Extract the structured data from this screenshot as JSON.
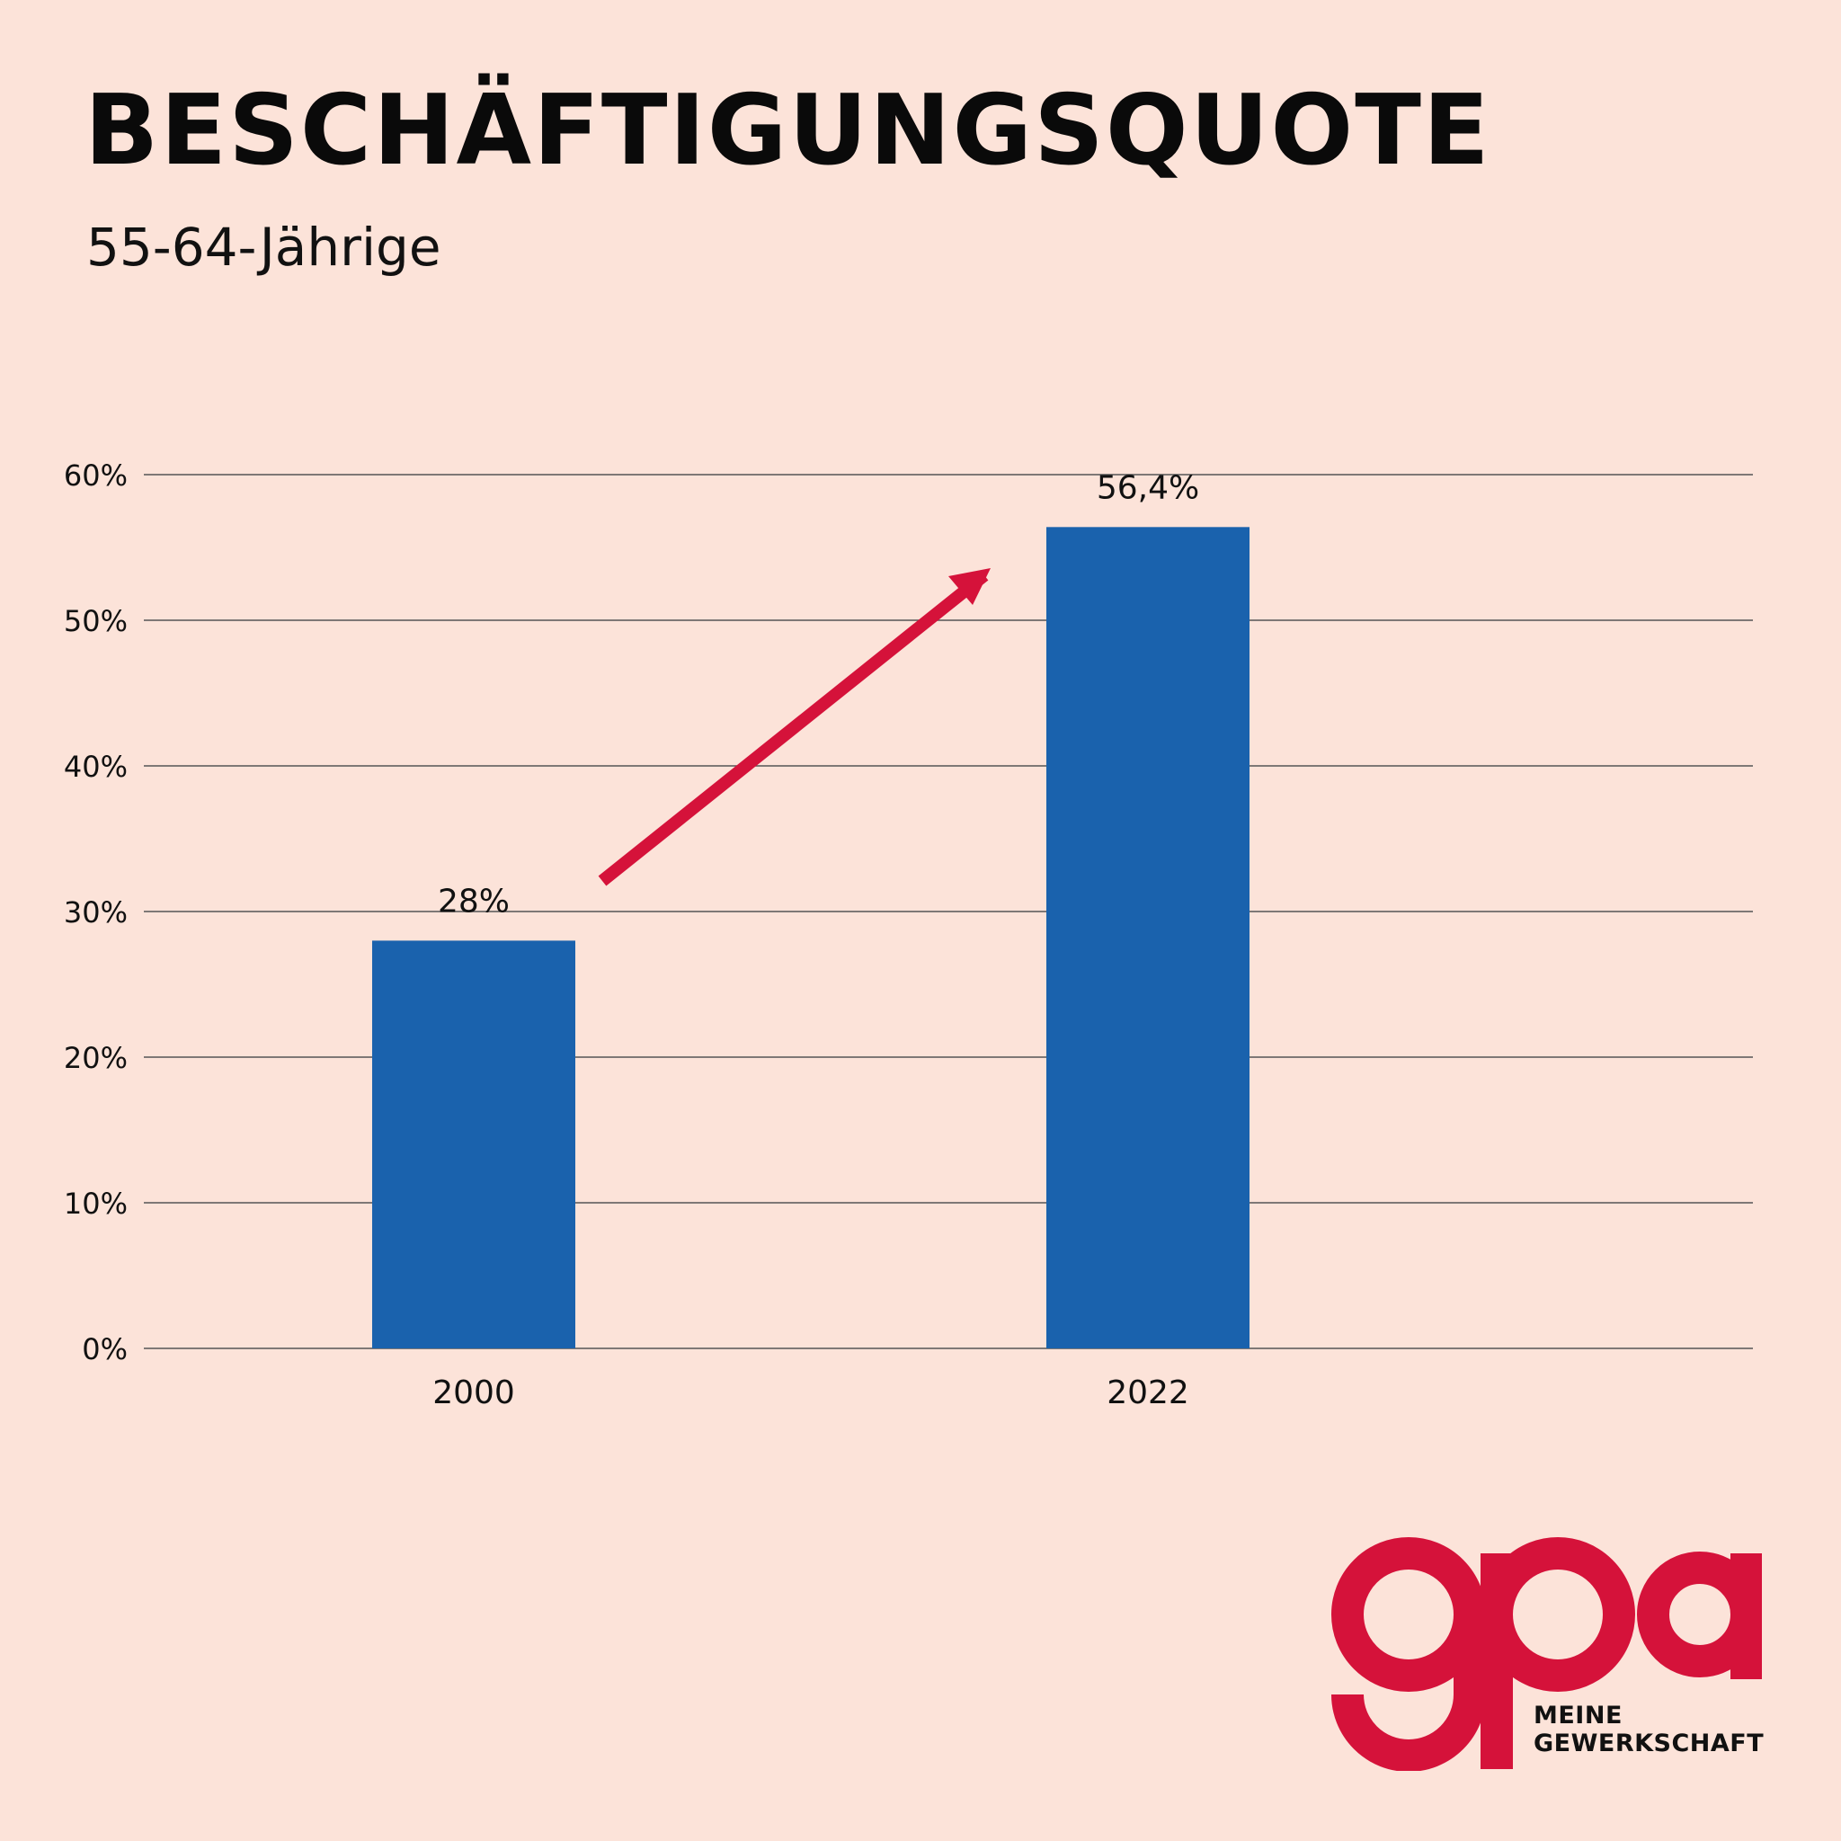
{
  "header": {
    "title": "BESCHÄFTIGUNGSQUOTE",
    "subtitle": "55-64-Jährige"
  },
  "chart_data": {
    "type": "bar",
    "categories": [
      "2000",
      "2022"
    ],
    "values": [
      28,
      56.4
    ],
    "value_labels": [
      "28%",
      "56,4%"
    ],
    "ylim": [
      0,
      60
    ],
    "yticks": [
      0,
      10,
      20,
      30,
      40,
      50,
      60
    ],
    "ytick_labels": [
      "0%",
      "10%",
      "20%",
      "30%",
      "40%",
      "50%",
      "60%"
    ],
    "grid": true,
    "annotations": [
      "red upward trend arrow from 2000 bar toward 2022 bar"
    ],
    "colors": {
      "bar": "#1a62ad",
      "arrow": "#d5123a",
      "grid": "#555555"
    }
  },
  "logo": {
    "text": "gpa",
    "tagline_line1": "MEINE",
    "tagline_line2": "GEWERKSCHAFT",
    "color": "#d5123a"
  }
}
